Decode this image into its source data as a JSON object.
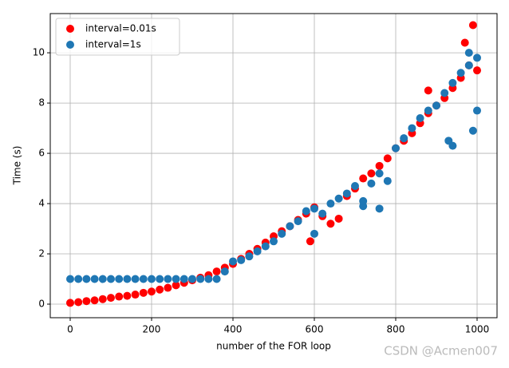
{
  "chart_data": {
    "type": "scatter",
    "xlabel": "number of the FOR loop",
    "ylabel": "Time (s)",
    "xlim": [
      -49,
      1049
    ],
    "ylim": [
      -0.54,
      11.56
    ],
    "xticks": [
      0,
      200,
      400,
      600,
      800,
      1000
    ],
    "yticks": [
      0,
      2,
      4,
      6,
      8,
      10
    ],
    "grid": true,
    "legend": "upper left",
    "watermark": "CSDN @Acmen007",
    "series": [
      {
        "name": "interval=0.01s",
        "color": "#ff0000",
        "x": [
          0,
          20,
          40,
          60,
          80,
          100,
          120,
          140,
          160,
          180,
          200,
          220,
          240,
          260,
          280,
          300,
          320,
          340,
          360,
          380,
          400,
          420,
          440,
          460,
          480,
          500,
          520,
          540,
          560,
          580,
          600,
          620,
          640,
          660,
          680,
          700,
          720,
          740,
          760,
          780,
          800,
          820,
          840,
          860,
          880,
          900,
          920,
          940,
          960,
          980,
          1000,
          970,
          990,
          590,
          880
        ],
        "values": [
          0.05,
          0.08,
          0.12,
          0.15,
          0.2,
          0.25,
          0.3,
          0.33,
          0.38,
          0.45,
          0.5,
          0.58,
          0.65,
          0.75,
          0.85,
          0.95,
          1.05,
          1.15,
          1.3,
          1.45,
          1.6,
          1.8,
          2.0,
          2.2,
          2.45,
          2.7,
          2.9,
          3.1,
          3.35,
          3.6,
          3.85,
          3.5,
          3.2,
          3.4,
          4.3,
          4.6,
          5.0,
          5.2,
          5.5,
          5.8,
          6.2,
          6.5,
          6.8,
          7.2,
          7.6,
          7.9,
          8.2,
          8.6,
          9.0,
          9.5,
          9.3,
          10.4,
          11.1,
          2.5,
          8.5
        ]
      },
      {
        "name": "interval=1s",
        "color": "#1f77b4",
        "x": [
          0,
          20,
          40,
          60,
          80,
          100,
          120,
          140,
          160,
          180,
          200,
          220,
          240,
          260,
          280,
          300,
          320,
          340,
          360,
          380,
          400,
          420,
          440,
          460,
          480,
          500,
          520,
          540,
          560,
          580,
          600,
          620,
          640,
          660,
          680,
          700,
          720,
          740,
          760,
          780,
          800,
          820,
          840,
          860,
          880,
          900,
          920,
          940,
          960,
          980,
          1000,
          930,
          940,
          990,
          1000,
          760,
          600,
          980,
          720
        ],
        "values": [
          1.0,
          1.0,
          1.0,
          1.0,
          1.0,
          1.0,
          1.0,
          1.0,
          1.0,
          1.0,
          1.0,
          1.0,
          1.0,
          1.0,
          1.0,
          1.0,
          1.0,
          1.0,
          1.0,
          1.3,
          1.7,
          1.75,
          1.9,
          2.1,
          2.3,
          2.5,
          2.8,
          3.1,
          3.3,
          3.7,
          3.8,
          3.6,
          4.0,
          4.2,
          4.4,
          4.7,
          3.9,
          4.8,
          5.2,
          4.9,
          6.2,
          6.6,
          7.0,
          7.4,
          7.7,
          7.9,
          8.4,
          8.8,
          9.2,
          9.5,
          9.8,
          6.5,
          6.3,
          6.9,
          7.7,
          3.8,
          2.8,
          10.0,
          4.1
        ]
      }
    ]
  }
}
